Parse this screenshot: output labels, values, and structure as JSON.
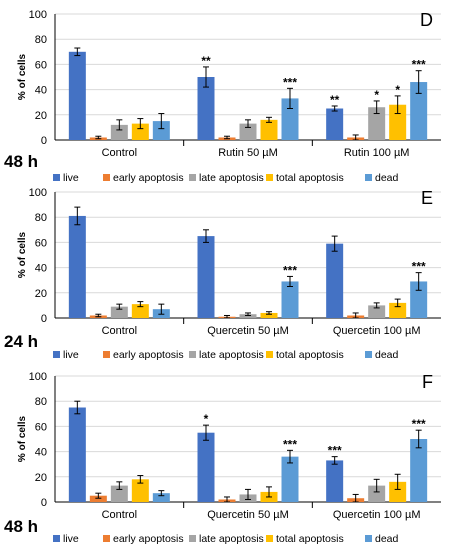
{
  "chart_data": [
    {
      "type": "bar",
      "panel_letter": "D",
      "time_label": "48 h",
      "ylabel": "% of cells",
      "ylim": [
        0,
        100
      ],
      "yticks": [
        0,
        20,
        40,
        60,
        80,
        100
      ],
      "categories": [
        "Control",
        "Rutin 50 µM",
        "Rutin 100 µM"
      ],
      "series": [
        {
          "name": "live",
          "values": [
            70,
            50,
            25
          ],
          "errors": [
            3,
            8,
            2
          ],
          "sig": [
            "",
            "**",
            "**"
          ]
        },
        {
          "name": "early apoptosis",
          "values": [
            2,
            2,
            2
          ],
          "errors": [
            1,
            1,
            2
          ],
          "sig": [
            "",
            "",
            ""
          ]
        },
        {
          "name": "late apoptosis",
          "values": [
            12,
            13,
            26
          ],
          "errors": [
            4,
            3,
            5
          ],
          "sig": [
            "",
            "",
            "*"
          ]
        },
        {
          "name": "total apoptosis",
          "values": [
            13,
            16,
            28
          ],
          "errors": [
            4,
            2,
            7
          ],
          "sig": [
            "",
            "",
            "*"
          ]
        },
        {
          "name": "dead",
          "values": [
            15,
            33,
            46
          ],
          "errors": [
            6,
            8,
            9
          ],
          "sig": [
            "",
            "***",
            "***"
          ]
        }
      ],
      "legend_position": "bottom"
    },
    {
      "type": "bar",
      "panel_letter": "E",
      "time_label": "24 h",
      "ylabel": "% of cells",
      "ylim": [
        0,
        100
      ],
      "yticks": [
        0,
        20,
        40,
        60,
        80,
        100
      ],
      "categories": [
        "Control",
        "Quercetin 50 µM",
        "Quercetin 100 µM"
      ],
      "series": [
        {
          "name": "live",
          "values": [
            81,
            65,
            59
          ],
          "errors": [
            7,
            5,
            6
          ],
          "sig": [
            "",
            "",
            ""
          ]
        },
        {
          "name": "early apoptosis",
          "values": [
            2,
            1,
            2
          ],
          "errors": [
            1,
            1,
            2
          ],
          "sig": [
            "",
            "",
            ""
          ]
        },
        {
          "name": "late apoptosis",
          "values": [
            9,
            3,
            10
          ],
          "errors": [
            2,
            1,
            2
          ],
          "sig": [
            "",
            "",
            ""
          ]
        },
        {
          "name": "total apoptosis",
          "values": [
            11,
            4,
            12
          ],
          "errors": [
            2,
            1,
            3
          ],
          "sig": [
            "",
            "",
            ""
          ]
        },
        {
          "name": "dead",
          "values": [
            7,
            29,
            29
          ],
          "errors": [
            4,
            4,
            7
          ],
          "sig": [
            "",
            "***",
            "***"
          ]
        }
      ],
      "legend_position": "bottom"
    },
    {
      "type": "bar",
      "panel_letter": "F",
      "time_label": "48 h",
      "ylabel": "% of cells",
      "ylim": [
        0,
        100
      ],
      "yticks": [
        0,
        20,
        40,
        60,
        80,
        100
      ],
      "categories": [
        "Control",
        "Quercetin 50 µM",
        "Quercetin 100 µM"
      ],
      "series": [
        {
          "name": "live",
          "values": [
            75,
            55,
            33
          ],
          "errors": [
            5,
            6,
            3
          ],
          "sig": [
            "",
            "*",
            "***"
          ]
        },
        {
          "name": "early apoptosis",
          "values": [
            5,
            2,
            3
          ],
          "errors": [
            2,
            2,
            3
          ],
          "sig": [
            "",
            "",
            ""
          ]
        },
        {
          "name": "late apoptosis",
          "values": [
            13,
            6,
            13
          ],
          "errors": [
            3,
            4,
            5
          ],
          "sig": [
            "",
            "",
            ""
          ]
        },
        {
          "name": "total apoptosis",
          "values": [
            18,
            8,
            16
          ],
          "errors": [
            3,
            4,
            6
          ],
          "sig": [
            "",
            "",
            ""
          ]
        },
        {
          "name": "dead",
          "values": [
            7,
            36,
            50
          ],
          "errors": [
            2,
            5,
            7
          ],
          "sig": [
            "",
            "***",
            "***"
          ]
        }
      ],
      "legend_position": "bottom"
    }
  ],
  "colors": {
    "live": "#4472c4",
    "early apoptosis": "#ed7d31",
    "late apoptosis": "#a5a5a5",
    "total apoptosis": "#ffc000",
    "dead": "#5b9bd5",
    "axis": "#000000",
    "gridline": "#d9d9d9"
  }
}
